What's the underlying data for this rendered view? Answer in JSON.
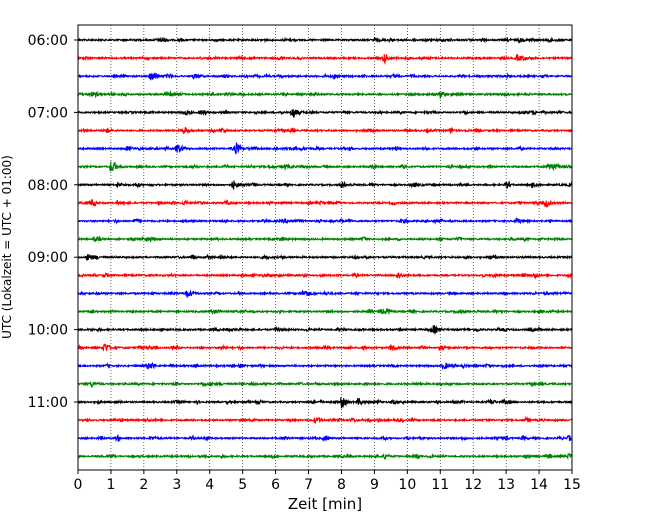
{
  "chart_data": {
    "type": "line",
    "title": "",
    "xlabel": "Zeit  [min]",
    "ylabel": "UTC (Lokalzeit = UTC + 01:00)",
    "xlim": [
      0,
      15
    ],
    "x_ticks": [
      "0",
      "1",
      "2",
      "3",
      "4",
      "5",
      "6",
      "7",
      "8",
      "9",
      "10",
      "11",
      "12",
      "13",
      "14",
      "15"
    ],
    "y_tick_labels": [
      "06:00",
      "07:00",
      "08:00",
      "09:00",
      "10:00",
      "11:00"
    ],
    "grid": "vertical-dotted",
    "trace_interval_min": 15,
    "trace_colors": [
      "#000000",
      "#ff0000",
      "#0000ff",
      "#008000"
    ],
    "traces": [
      {
        "start": "06:00",
        "events": [
          [
            2.5,
            0.5
          ],
          [
            9.0,
            0.45
          ],
          [
            13.4,
            0.45
          ],
          [
            14.3,
            0.5
          ]
        ]
      },
      {
        "start": "06:15",
        "events": [
          [
            9.3,
            1.0
          ],
          [
            13.3,
            0.7
          ]
        ]
      },
      {
        "start": "06:30",
        "events": [
          [
            2.2,
            1.0
          ],
          [
            3.5,
            0.55
          ]
        ]
      },
      {
        "start": "06:45",
        "events": [
          [
            11.0,
            0.9
          ],
          [
            0.4,
            0.5
          ],
          [
            2.8,
            0.4
          ],
          [
            4.5,
            0.4
          ]
        ]
      },
      {
        "start": "07:00",
        "events": [
          [
            6.5,
            1.6
          ],
          [
            3.7,
            0.4
          ]
        ]
      },
      {
        "start": "07:15",
        "events": [
          [
            3.2,
            0.9
          ],
          [
            10.6,
            0.4
          ]
        ]
      },
      {
        "start": "07:30",
        "events": [
          [
            3.0,
            1.3
          ],
          [
            4.8,
            1.4
          ],
          [
            1.5,
            0.5
          ]
        ]
      },
      {
        "start": "07:45",
        "events": [
          [
            1.0,
            1.3
          ],
          [
            14.3,
            1.0
          ],
          [
            6.3,
            0.5
          ]
        ]
      },
      {
        "start": "08:00",
        "events": [
          [
            1.2,
            0.6
          ],
          [
            4.7,
            1.1
          ],
          [
            8.0,
            0.5
          ],
          [
            13.8,
            0.5
          ]
        ]
      },
      {
        "start": "08:15",
        "events": [
          [
            14.2,
            1.0
          ],
          [
            4.5,
            0.4
          ],
          [
            1.2,
            0.4
          ]
        ]
      },
      {
        "start": "08:30",
        "events": [
          [
            13.3,
            0.8
          ],
          [
            9.8,
            0.4
          ]
        ]
      },
      {
        "start": "08:45",
        "events": [
          [
            6.2,
            0.4
          ],
          [
            2.2,
            0.4
          ],
          [
            0.5,
            0.4
          ]
        ]
      },
      {
        "start": "09:00",
        "events": [
          [
            0.3,
            0.9
          ],
          [
            12.5,
            0.5
          ]
        ]
      },
      {
        "start": "09:15",
        "events": [
          [
            9.7,
            0.8
          ],
          [
            0.8,
            0.5
          ],
          [
            13.5,
            0.4
          ]
        ]
      },
      {
        "start": "09:30",
        "events": [
          [
            3.3,
            0.8
          ],
          [
            7.5,
            0.4
          ]
        ]
      },
      {
        "start": "09:45",
        "events": [
          [
            9.2,
            0.5
          ],
          [
            4.2,
            0.4
          ]
        ]
      },
      {
        "start": "10:00",
        "events": [
          [
            10.8,
            0.9
          ],
          [
            6.0,
            0.4
          ]
        ]
      },
      {
        "start": "10:15",
        "events": [
          [
            0.8,
            1.3
          ],
          [
            9.5,
            0.8
          ],
          [
            11.0,
            0.6
          ]
        ]
      },
      {
        "start": "10:30",
        "events": [
          [
            2.1,
            0.5
          ],
          [
            4.9,
            0.4
          ]
        ]
      },
      {
        "start": "10:45",
        "events": [
          [
            0.4,
            0.5
          ],
          [
            4.0,
            0.4
          ],
          [
            7.8,
            0.4
          ]
        ]
      },
      {
        "start": "11:00",
        "events": [
          [
            8.0,
            1.3
          ],
          [
            8.5,
            0.8
          ],
          [
            12.5,
            0.5
          ]
        ]
      },
      {
        "start": "11:15",
        "events": [
          [
            7.2,
            0.5
          ],
          [
            8.3,
            0.5
          ]
        ]
      },
      {
        "start": "11:30",
        "events": [
          [
            2.2,
            0.5
          ],
          [
            13.5,
            0.4
          ],
          [
            14.9,
            0.6
          ]
        ]
      },
      {
        "start": "11:45",
        "events": [
          [
            9.3,
            0.5
          ],
          [
            13.6,
            0.5
          ]
        ]
      }
    ]
  }
}
